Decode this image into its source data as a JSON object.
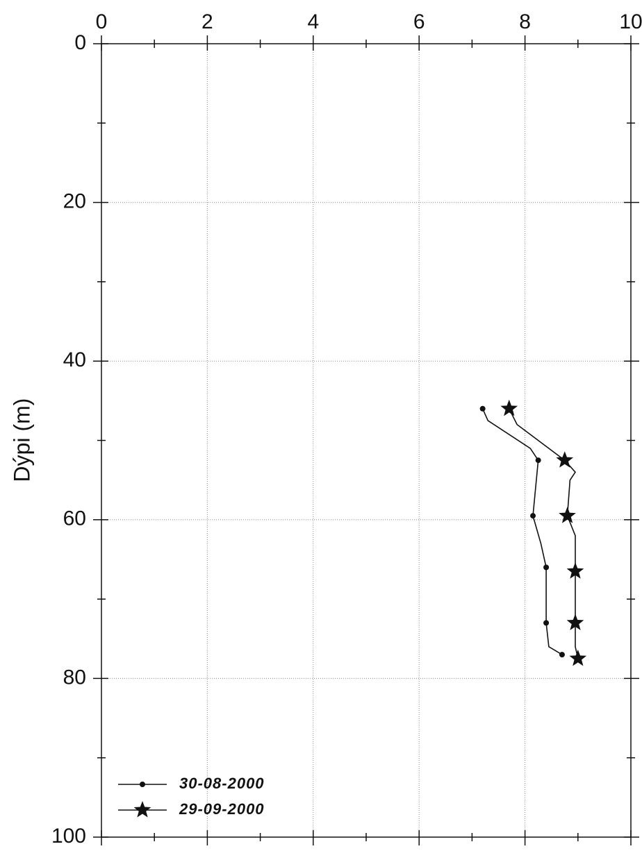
{
  "chart_data": {
    "type": "line",
    "title": "",
    "xlabel": "",
    "ylabel": "Dýpi (m)",
    "xlim": [
      0,
      10
    ],
    "ylim": [
      0,
      100
    ],
    "y_inverted": true,
    "x_axis_position": "top",
    "grid": true,
    "legend_position": "bottom-left",
    "x_ticks": [
      0,
      2,
      4,
      6,
      8,
      10
    ],
    "y_ticks": [
      0,
      20,
      40,
      60,
      80,
      100
    ],
    "series": [
      {
        "name": "30-08-2000",
        "marker": "dot",
        "color": "#111111",
        "points": [
          {
            "x": 7.2,
            "y": 46
          },
          {
            "x": 7.3,
            "y": 47.5
          },
          {
            "x": 8.1,
            "y": 51
          },
          {
            "x": 8.25,
            "y": 52.5
          },
          {
            "x": 8.2,
            "y": 56
          },
          {
            "x": 8.15,
            "y": 59.5
          },
          {
            "x": 8.3,
            "y": 63
          },
          {
            "x": 8.4,
            "y": 66
          },
          {
            "x": 8.4,
            "y": 73
          },
          {
            "x": 8.45,
            "y": 76
          },
          {
            "x": 8.7,
            "y": 77
          }
        ]
      },
      {
        "name": "29-09-2000",
        "marker": "star",
        "color": "#111111",
        "points": [
          {
            "x": 7.7,
            "y": 46
          },
          {
            "x": 7.85,
            "y": 48
          },
          {
            "x": 8.75,
            "y": 52.5
          },
          {
            "x": 8.95,
            "y": 54
          },
          {
            "x": 8.85,
            "y": 55
          },
          {
            "x": 8.8,
            "y": 59.5
          },
          {
            "x": 8.95,
            "y": 62
          },
          {
            "x": 8.95,
            "y": 66.5
          },
          {
            "x": 8.95,
            "y": 73
          },
          {
            "x": 8.95,
            "y": 76
          },
          {
            "x": 9.0,
            "y": 77.5
          }
        ]
      }
    ]
  }
}
